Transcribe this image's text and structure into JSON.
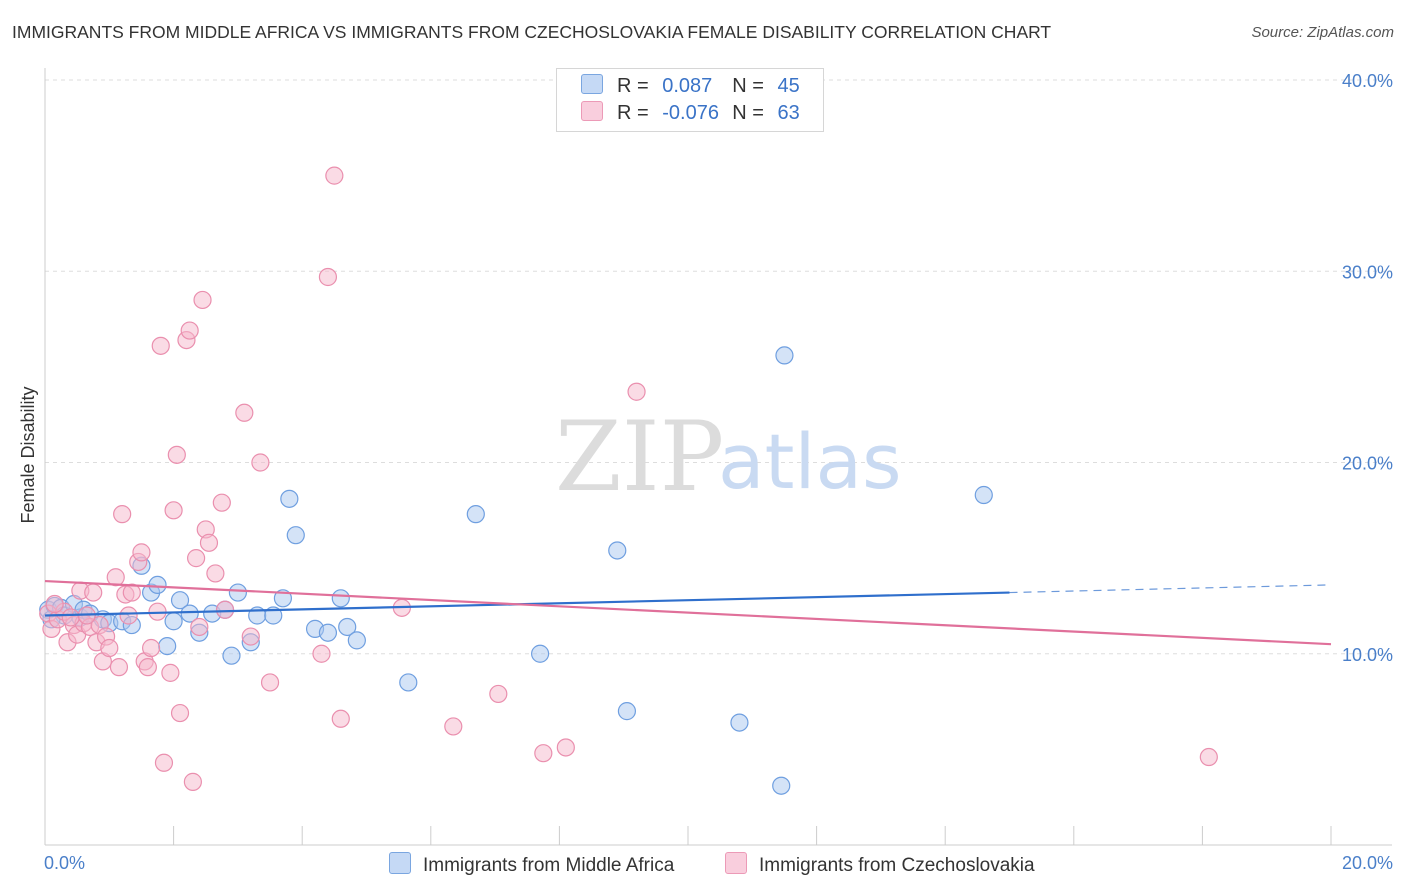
{
  "title": "IMMIGRANTS FROM MIDDLE AFRICA VS IMMIGRANTS FROM CZECHOSLOVAKIA FEMALE DISABILITY CORRELATION CHART",
  "source": "Source: ZipAtlas.com",
  "watermark": {
    "zip": "ZIP",
    "atlas": "atlas"
  },
  "legend": {
    "r_label": "R =",
    "n_label": "N =",
    "rows": [
      {
        "r": "0.087",
        "n": "45"
      },
      {
        "r": "-0.076",
        "n": "63"
      }
    ]
  },
  "colors": {
    "blue_fill": "#aac8f0",
    "blue_stroke": "#6f9fe0",
    "blue_line": "#2f6fcc",
    "pink_fill": "#f5b8cc",
    "pink_stroke": "#ea8fae",
    "pink_line": "#e0709a",
    "grid": "#dddddd",
    "tick_text": "#4a7fc9"
  },
  "chart_data": {
    "type": "scatter",
    "title": "IMMIGRANTS FROM MIDDLE AFRICA VS IMMIGRANTS FROM CZECHOSLOVAKIA FEMALE DISABILITY CORRELATION CHART",
    "xlabel": "",
    "ylabel": "Female Disability",
    "xlim": [
      0,
      20
    ],
    "ylim": [
      0,
      40
    ],
    "x_tick_labels": [
      "0.0%",
      "20.0%"
    ],
    "y_ticks": [
      10,
      20,
      30,
      40
    ],
    "y_tick_labels": [
      "10.0%",
      "20.0%",
      "30.0%",
      "40.0%"
    ],
    "grid": true,
    "legend_position": "bottom",
    "series": [
      {
        "name": "Immigrants from Middle Africa",
        "r": 0.087,
        "n": 45,
        "trend": {
          "x0": 0,
          "y0": 12.0,
          "x1": 15,
          "y1": 13.2,
          "dashed_to_x": 20,
          "dashed_to_y": 13.6
        },
        "points": [
          [
            0.05,
            12.3
          ],
          [
            0.15,
            12.5
          ],
          [
            0.25,
            12.4
          ],
          [
            0.3,
            12.0
          ],
          [
            0.45,
            12.6
          ],
          [
            0.55,
            11.9
          ],
          [
            0.6,
            12.3
          ],
          [
            0.7,
            12.1
          ],
          [
            0.9,
            11.8
          ],
          [
            1.0,
            11.6
          ],
          [
            1.2,
            11.7
          ],
          [
            1.35,
            11.5
          ],
          [
            1.5,
            14.6
          ],
          [
            1.65,
            13.2
          ],
          [
            1.75,
            13.6
          ],
          [
            1.9,
            10.4
          ],
          [
            2.0,
            11.7
          ],
          [
            2.1,
            12.8
          ],
          [
            2.25,
            12.1
          ],
          [
            2.4,
            11.1
          ],
          [
            2.6,
            12.1
          ],
          [
            2.8,
            12.3
          ],
          [
            2.9,
            9.9
          ],
          [
            3.0,
            13.2
          ],
          [
            3.2,
            10.6
          ],
          [
            3.3,
            12.0
          ],
          [
            3.55,
            12.0
          ],
          [
            3.7,
            12.9
          ],
          [
            3.8,
            18.1
          ],
          [
            3.9,
            16.2
          ],
          [
            4.2,
            11.3
          ],
          [
            4.4,
            11.1
          ],
          [
            4.6,
            12.9
          ],
          [
            4.7,
            11.4
          ],
          [
            4.85,
            10.7
          ],
          [
            5.65,
            8.5
          ],
          [
            6.7,
            17.3
          ],
          [
            7.7,
            10.0
          ],
          [
            8.9,
            15.4
          ],
          [
            9.05,
            7.0
          ],
          [
            10.8,
            6.4
          ],
          [
            11.45,
            3.1
          ],
          [
            11.5,
            25.6
          ],
          [
            14.6,
            18.3
          ],
          [
            0.1,
            11.8
          ]
        ]
      },
      {
        "name": "Immigrants from Czechoslovakia",
        "r": -0.076,
        "n": 63,
        "trend": {
          "x0": 0,
          "y0": 13.8,
          "x1": 20,
          "y1": 10.5
        },
        "points": [
          [
            0.05,
            12.1
          ],
          [
            0.1,
            11.3
          ],
          [
            0.2,
            11.8
          ],
          [
            0.3,
            12.2
          ],
          [
            0.35,
            10.6
          ],
          [
            0.45,
            11.5
          ],
          [
            0.5,
            11.0
          ],
          [
            0.55,
            13.3
          ],
          [
            0.6,
            11.6
          ],
          [
            0.7,
            11.4
          ],
          [
            0.75,
            13.2
          ],
          [
            0.8,
            10.6
          ],
          [
            0.85,
            11.5
          ],
          [
            0.9,
            9.6
          ],
          [
            0.95,
            10.9
          ],
          [
            1.0,
            10.3
          ],
          [
            1.1,
            14.0
          ],
          [
            1.15,
            9.3
          ],
          [
            1.2,
            17.3
          ],
          [
            1.25,
            13.1
          ],
          [
            1.3,
            12.0
          ],
          [
            1.35,
            13.2
          ],
          [
            1.45,
            14.8
          ],
          [
            1.5,
            15.3
          ],
          [
            1.55,
            9.6
          ],
          [
            1.6,
            9.3
          ],
          [
            1.65,
            10.3
          ],
          [
            1.75,
            12.2
          ],
          [
            1.8,
            26.1
          ],
          [
            1.85,
            4.3
          ],
          [
            1.95,
            9.0
          ],
          [
            2.0,
            17.5
          ],
          [
            2.05,
            20.4
          ],
          [
            2.1,
            6.9
          ],
          [
            2.2,
            26.4
          ],
          [
            2.25,
            26.9
          ],
          [
            2.3,
            3.3
          ],
          [
            2.35,
            15.0
          ],
          [
            2.4,
            11.4
          ],
          [
            2.45,
            28.5
          ],
          [
            2.5,
            16.5
          ],
          [
            2.55,
            15.8
          ],
          [
            2.65,
            14.2
          ],
          [
            2.75,
            17.9
          ],
          [
            2.8,
            12.3
          ],
          [
            3.1,
            22.6
          ],
          [
            3.2,
            10.9
          ],
          [
            3.35,
            20.0
          ],
          [
            3.5,
            8.5
          ],
          [
            4.3,
            10.0
          ],
          [
            4.4,
            29.7
          ],
          [
            4.5,
            35.0
          ],
          [
            4.6,
            6.6
          ],
          [
            5.55,
            12.4
          ],
          [
            6.35,
            6.2
          ],
          [
            7.05,
            7.9
          ],
          [
            7.75,
            4.8
          ],
          [
            8.1,
            5.1
          ],
          [
            9.2,
            23.7
          ],
          [
            18.1,
            4.6
          ],
          [
            0.15,
            12.6
          ],
          [
            0.4,
            11.9
          ],
          [
            0.65,
            12.0
          ]
        ]
      }
    ]
  },
  "bottom_legend": [
    "Immigrants from Middle Africa",
    "Immigrants from Czechoslovakia"
  ]
}
